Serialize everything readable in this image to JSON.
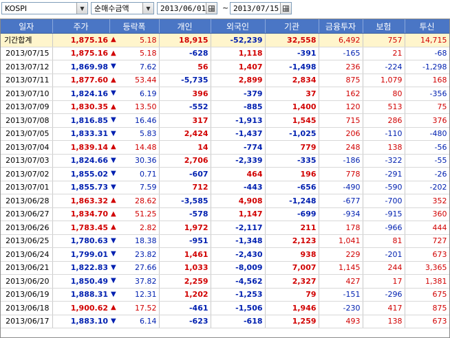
{
  "toolbar": {
    "market": "KOSPI",
    "metric": "순매수금액",
    "start_date": "2013/06/01",
    "separator": "~",
    "end_date": "2013/07/15"
  },
  "columns": [
    "일자",
    "주가",
    "등락폭",
    "개인",
    "외국인",
    "기관",
    "금융투자",
    "보험",
    "투신"
  ],
  "rows": [
    {
      "date": "기간합계",
      "price": "1,875.16",
      "dir": "up",
      "change": "5.18",
      "individual": "18,915",
      "foreign": "-52,239",
      "institution": "32,558",
      "fin_invest": "6,492",
      "insurance": "757",
      "trust": "14,715",
      "total": true
    },
    {
      "date": "2013/07/15",
      "price": "1,875.16",
      "dir": "up",
      "change": "5.18",
      "individual": "-628",
      "foreign": "1,118",
      "institution": "-391",
      "fin_invest": "-165",
      "insurance": "21",
      "trust": "-68"
    },
    {
      "date": "2013/07/12",
      "price": "1,869.98",
      "dir": "down",
      "change": "7.62",
      "individual": "56",
      "foreign": "1,407",
      "institution": "-1,498",
      "fin_invest": "236",
      "insurance": "-224",
      "trust": "-1,298"
    },
    {
      "date": "2013/07/11",
      "price": "1,877.60",
      "dir": "up",
      "change": "53.44",
      "individual": "-5,735",
      "foreign": "2,899",
      "institution": "2,834",
      "fin_invest": "875",
      "insurance": "1,079",
      "trust": "168"
    },
    {
      "date": "2013/07/10",
      "price": "1,824.16",
      "dir": "down",
      "change": "6.19",
      "individual": "396",
      "foreign": "-379",
      "institution": "37",
      "fin_invest": "162",
      "insurance": "80",
      "trust": "-356"
    },
    {
      "date": "2013/07/09",
      "price": "1,830.35",
      "dir": "up",
      "change": "13.50",
      "individual": "-552",
      "foreign": "-885",
      "institution": "1,400",
      "fin_invest": "120",
      "insurance": "513",
      "trust": "75"
    },
    {
      "date": "2013/07/08",
      "price": "1,816.85",
      "dir": "down",
      "change": "16.46",
      "individual": "317",
      "foreign": "-1,913",
      "institution": "1,545",
      "fin_invest": "715",
      "insurance": "286",
      "trust": "376"
    },
    {
      "date": "2013/07/05",
      "price": "1,833.31",
      "dir": "down",
      "change": "5.83",
      "individual": "2,424",
      "foreign": "-1,437",
      "institution": "-1,025",
      "fin_invest": "206",
      "insurance": "-110",
      "trust": "-480"
    },
    {
      "date": "2013/07/04",
      "price": "1,839.14",
      "dir": "up",
      "change": "14.48",
      "individual": "14",
      "foreign": "-774",
      "institution": "779",
      "fin_invest": "248",
      "insurance": "138",
      "trust": "-56"
    },
    {
      "date": "2013/07/03",
      "price": "1,824.66",
      "dir": "down",
      "change": "30.36",
      "individual": "2,706",
      "foreign": "-2,339",
      "institution": "-335",
      "fin_invest": "-186",
      "insurance": "-322",
      "trust": "-55"
    },
    {
      "date": "2013/07/02",
      "price": "1,855.02",
      "dir": "down",
      "change": "0.71",
      "individual": "-607",
      "foreign": "464",
      "institution": "196",
      "fin_invest": "778",
      "insurance": "-291",
      "trust": "-26"
    },
    {
      "date": "2013/07/01",
      "price": "1,855.73",
      "dir": "down",
      "change": "7.59",
      "individual": "712",
      "foreign": "-443",
      "institution": "-656",
      "fin_invest": "-490",
      "insurance": "-590",
      "trust": "-202"
    },
    {
      "date": "2013/06/28",
      "price": "1,863.32",
      "dir": "up",
      "change": "28.62",
      "individual": "-3,585",
      "foreign": "4,908",
      "institution": "-1,248",
      "fin_invest": "-677",
      "insurance": "-700",
      "trust": "352"
    },
    {
      "date": "2013/06/27",
      "price": "1,834.70",
      "dir": "up",
      "change": "51.25",
      "individual": "-578",
      "foreign": "1,147",
      "institution": "-699",
      "fin_invest": "-934",
      "insurance": "-915",
      "trust": "360"
    },
    {
      "date": "2013/06/26",
      "price": "1,783.45",
      "dir": "up",
      "change": "2.82",
      "individual": "1,972",
      "foreign": "-2,117",
      "institution": "211",
      "fin_invest": "178",
      "insurance": "-966",
      "trust": "444"
    },
    {
      "date": "2013/06/25",
      "price": "1,780.63",
      "dir": "down",
      "change": "18.38",
      "individual": "-951",
      "foreign": "-1,348",
      "institution": "2,123",
      "fin_invest": "1,041",
      "insurance": "81",
      "trust": "727"
    },
    {
      "date": "2013/06/24",
      "price": "1,799.01",
      "dir": "down",
      "change": "23.82",
      "individual": "1,461",
      "foreign": "-2,430",
      "institution": "938",
      "fin_invest": "229",
      "insurance": "-201",
      "trust": "673"
    },
    {
      "date": "2013/06/21",
      "price": "1,822.83",
      "dir": "down",
      "change": "27.66",
      "individual": "1,033",
      "foreign": "-8,009",
      "institution": "7,007",
      "fin_invest": "1,145",
      "insurance": "244",
      "trust": "3,365"
    },
    {
      "date": "2013/06/20",
      "price": "1,850.49",
      "dir": "down",
      "change": "37.82",
      "individual": "2,259",
      "foreign": "-4,562",
      "institution": "2,327",
      "fin_invest": "427",
      "insurance": "17",
      "trust": "1,381"
    },
    {
      "date": "2013/06/19",
      "price": "1,888.31",
      "dir": "down",
      "change": "12.31",
      "individual": "1,202",
      "foreign": "-1,253",
      "institution": "79",
      "fin_invest": "-151",
      "insurance": "-296",
      "trust": "675"
    },
    {
      "date": "2013/06/18",
      "price": "1,900.62",
      "dir": "up",
      "change": "17.52",
      "individual": "-461",
      "foreign": "-1,506",
      "institution": "1,946",
      "fin_invest": "-230",
      "insurance": "417",
      "trust": "875"
    },
    {
      "date": "2013/06/17",
      "price": "1,883.10",
      "dir": "down",
      "change": "6.14",
      "individual": "-623",
      "foreign": "-618",
      "institution": "1,259",
      "fin_invest": "493",
      "insurance": "138",
      "trust": "673"
    }
  ]
}
